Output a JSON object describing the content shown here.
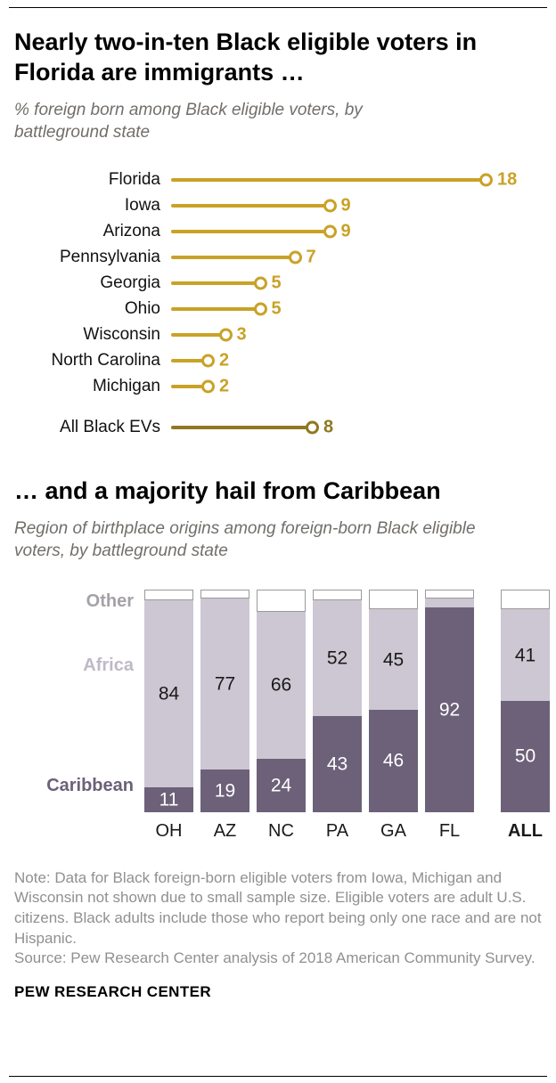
{
  "page": {
    "brand": "PEW RESEARCH CENTER"
  },
  "footer": {
    "note": "Note: Data for Black foreign-born eligible voters from Iowa, Michigan and Wisconsin not shown due to small sample size. Eligible voters are adult U.S. citizens. Black adults include those who report being only one race and are not Hispanic.",
    "source": "Source: Pew Research Center analysis of 2018 American Community Survey."
  },
  "chart_data": [
    {
      "type": "lollipop",
      "title": "Nearly two-in-ten Black eligible voters in Florida are immigrants …",
      "subtitle": "% foreign born among Black eligible voters, by battleground state",
      "categories": [
        "Florida",
        "Iowa",
        "Arizona",
        "Pennsylvania",
        "Georgia",
        "Ohio",
        "Wisconsin",
        "North Carolina",
        "Michigan"
      ],
      "values": [
        18,
        9,
        9,
        7,
        5,
        5,
        3,
        2,
        2
      ],
      "summary": {
        "label": "All Black EVs",
        "value": 8
      },
      "xlim": [
        0,
        18
      ],
      "unit": "% foreign born",
      "color": "#C9A227",
      "summary_color": "#8F7821"
    },
    {
      "type": "stacked-bar",
      "title": "… and a majority hail from Caribbean",
      "subtitle": "Region of birthplace origins among foreign-born Black eligible voters, by battleground state",
      "categories": [
        "OH",
        "AZ",
        "NC",
        "PA",
        "GA",
        "FL"
      ],
      "all_category": "ALL",
      "ylim": [
        0,
        100
      ],
      "series": [
        {
          "name": "Caribbean",
          "color": "#6C6179",
          "label_color": "#FFFFFF",
          "values": [
            11,
            19,
            24,
            43,
            46,
            92
          ],
          "labels": [
            "11",
            "19",
            "24",
            "43",
            "46",
            "92"
          ],
          "all_value": 50,
          "all_value_label": "50"
        },
        {
          "name": "Africa",
          "color": "#CCC7D2",
          "label_color": "#1A1A1A",
          "values": [
            84,
            77,
            66,
            52,
            45,
            4
          ],
          "labels": [
            "84",
            "77",
            "66",
            "52",
            "45",
            ""
          ],
          "all_value": 41,
          "all_value_label": "41"
        },
        {
          "name": "Other",
          "color": "#FFFFFF",
          "label_color": "#1A1A1A",
          "values": [
            5,
            4,
            10,
            5,
            9,
            4
          ],
          "labels": [
            "",
            "",
            "",
            "",
            "",
            ""
          ],
          "all_value": 9,
          "all_value_label": ""
        }
      ],
      "axis_labels": [
        {
          "text": "Other",
          "color": "#A5A1A8"
        },
        {
          "text": "Africa",
          "color": "#BFB9C7"
        },
        {
          "text": "Caribbean",
          "color": "#6C6179"
        }
      ]
    }
  ]
}
